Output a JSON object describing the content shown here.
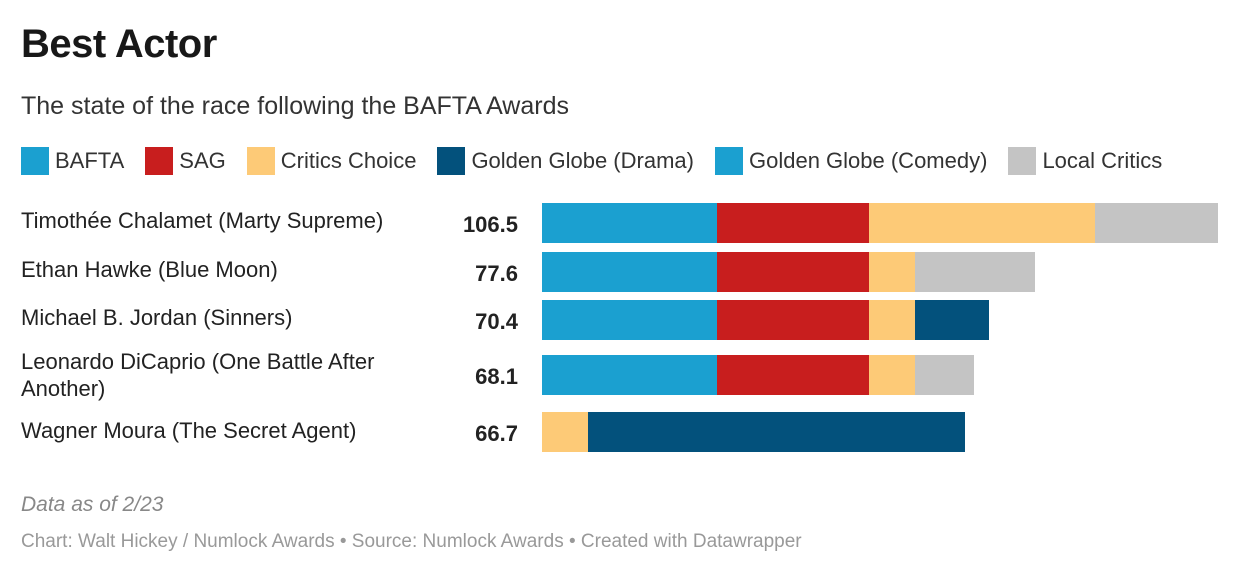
{
  "chart_data": {
    "type": "bar",
    "orientation": "horizontal",
    "stacked": true,
    "title": "Best Actor",
    "subtitle": "The state of the race following the BAFTA Awards",
    "legend": [
      {
        "name": "BAFTA",
        "color": "#1ba0d0"
      },
      {
        "name": "SAG",
        "color": "#c81e1e"
      },
      {
        "name": "Critics Choice",
        "color": "#fdca77"
      },
      {
        "name": "Golden Globe (Drama)",
        "color": "#03517c"
      },
      {
        "name": "Golden Globe (Comedy)",
        "color": "#1ba0d0"
      },
      {
        "name": "Local Critics",
        "color": "#c4c4c4"
      }
    ],
    "categories": [
      "Timothée Chalamet (Marty Supreme)",
      "Ethan Hawke (Blue Moon)",
      "Michael B. Jordan (Sinners)",
      "Leonardo DiCaprio (One Battle After Another)",
      "Wagner Moura (The Secret Agent)"
    ],
    "totals": [
      "106.5",
      "77.6",
      "70.4",
      "68.1",
      "66.7"
    ],
    "series": [
      {
        "name": "BAFTA",
        "values": [
          27.5,
          27.5,
          27.5,
          27.5,
          0
        ]
      },
      {
        "name": "SAG",
        "values": [
          24,
          24,
          24,
          24,
          0
        ]
      },
      {
        "name": "Critics Choice",
        "values": [
          35.6,
          7.2,
          7.2,
          7.2,
          7.2
        ]
      },
      {
        "name": "Golden Globe (Drama)",
        "values": [
          0,
          0,
          11.7,
          0,
          59.5
        ]
      },
      {
        "name": "Golden Globe (Comedy)",
        "values": [
          0,
          0,
          0,
          0,
          0
        ]
      },
      {
        "name": "Local Critics",
        "values": [
          19.4,
          18.9,
          0,
          9.4,
          0
        ]
      }
    ],
    "xlim": [
      0,
      106.5
    ]
  },
  "footer": {
    "note": "Data as of 2/23",
    "credit": "Chart: Walt Hickey / Numlock Awards • Source: Numlock Awards • Created with Datawrapper"
  }
}
